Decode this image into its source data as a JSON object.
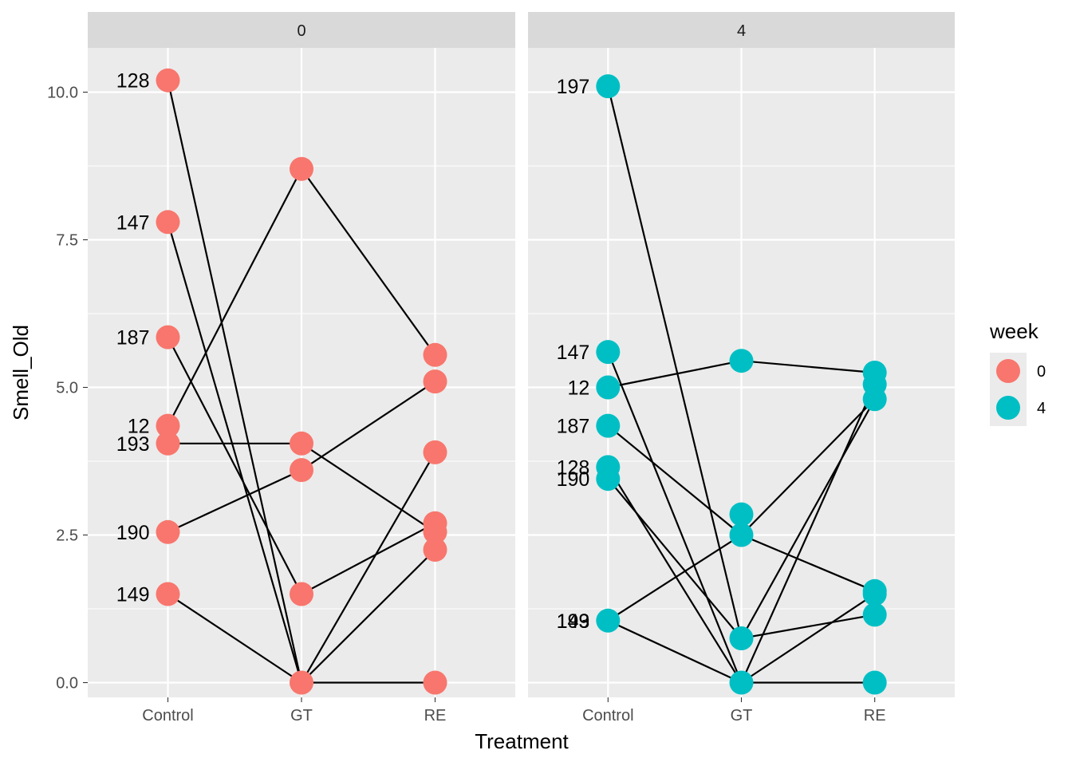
{
  "chart_data": {
    "type": "scatter",
    "title": "",
    "xlabel": "Treatment",
    "ylabel": "Smell_Old",
    "categories": [
      "Control",
      "GT",
      "RE"
    ],
    "ylim": [
      -0.25,
      10.75
    ],
    "yticks": [
      0,
      2.5,
      5,
      7.5,
      10
    ],
    "ytick_labels": [
      "0.0",
      "2.5",
      "5.0",
      "7.5",
      "10.0"
    ],
    "grid": true,
    "legend": {
      "title": "week",
      "position": "right",
      "entries": [
        {
          "label": "0",
          "color": "#F8766D"
        },
        {
          "label": "4",
          "color": "#00BFC4"
        }
      ]
    },
    "panels": [
      {
        "strip": "0",
        "color": "#F8766D",
        "points": [
          {
            "cat": "Control",
            "y": 10.2
          },
          {
            "cat": "Control",
            "y": 7.8
          },
          {
            "cat": "Control",
            "y": 5.85
          },
          {
            "cat": "Control",
            "y": 4.35
          },
          {
            "cat": "Control",
            "y": 4.05
          },
          {
            "cat": "Control",
            "y": 2.55
          },
          {
            "cat": "Control",
            "y": 1.5
          },
          {
            "cat": "GT",
            "y": 8.7
          },
          {
            "cat": "GT",
            "y": 4.05
          },
          {
            "cat": "GT",
            "y": 3.6
          },
          {
            "cat": "GT",
            "y": 1.5
          },
          {
            "cat": "GT",
            "y": 0.0
          },
          {
            "cat": "RE",
            "y": 5.55
          },
          {
            "cat": "RE",
            "y": 5.1
          },
          {
            "cat": "RE",
            "y": 3.9
          },
          {
            "cat": "RE",
            "y": 2.7
          },
          {
            "cat": "RE",
            "y": 2.55
          },
          {
            "cat": "RE",
            "y": 2.25
          },
          {
            "cat": "RE",
            "y": 0.0
          }
        ],
        "labels": [
          {
            "text": "128",
            "y": 10.2
          },
          {
            "text": "147",
            "y": 7.8
          },
          {
            "text": "187",
            "y": 5.85
          },
          {
            "text": "12",
            "y": 4.35
          },
          {
            "text": "193",
            "y": 4.05
          },
          {
            "text": "190",
            "y": 2.55
          },
          {
            "text": "149",
            "y": 1.5
          }
        ],
        "paths": [
          [
            [
              "Control",
              10.2
            ],
            [
              "GT",
              0.0
            ],
            [
              "RE",
              0.0
            ]
          ],
          [
            [
              "Control",
              7.8
            ],
            [
              "GT",
              0.0
            ],
            [
              "RE",
              2.25
            ]
          ],
          [
            [
              "Control",
              5.85
            ],
            [
              "GT",
              1.5
            ],
            [
              "RE",
              2.7
            ]
          ],
          [
            [
              "Control",
              4.35
            ],
            [
              "GT",
              8.7
            ],
            [
              "RE",
              5.55
            ]
          ],
          [
            [
              "Control",
              4.05
            ],
            [
              "GT",
              4.05
            ],
            [
              "RE",
              2.55
            ]
          ],
          [
            [
              "Control",
              2.55
            ],
            [
              "GT",
              3.6
            ],
            [
              "RE",
              5.1
            ]
          ],
          [
            [
              "Control",
              1.5
            ],
            [
              "GT",
              0.0
            ],
            [
              "RE",
              3.9
            ]
          ]
        ]
      },
      {
        "strip": "4",
        "color": "#00BFC4",
        "points": [
          {
            "cat": "Control",
            "y": 10.1
          },
          {
            "cat": "Control",
            "y": 5.6
          },
          {
            "cat": "Control",
            "y": 5.0
          },
          {
            "cat": "Control",
            "y": 4.35
          },
          {
            "cat": "Control",
            "y": 3.65
          },
          {
            "cat": "Control",
            "y": 3.45
          },
          {
            "cat": "Control",
            "y": 1.05
          },
          {
            "cat": "GT",
            "y": 5.45
          },
          {
            "cat": "GT",
            "y": 2.85
          },
          {
            "cat": "GT",
            "y": 2.5
          },
          {
            "cat": "GT",
            "y": 0.75
          },
          {
            "cat": "GT",
            "y": 0.0
          },
          {
            "cat": "RE",
            "y": 5.25
          },
          {
            "cat": "RE",
            "y": 5.05
          },
          {
            "cat": "RE",
            "y": 4.8
          },
          {
            "cat": "RE",
            "y": 1.55
          },
          {
            "cat": "RE",
            "y": 1.5
          },
          {
            "cat": "RE",
            "y": 1.15
          },
          {
            "cat": "RE",
            "y": 0.0
          }
        ],
        "labels": [
          {
            "text": "197",
            "y": 10.1
          },
          {
            "text": "147",
            "y": 5.6
          },
          {
            "text": "12",
            "y": 5.0
          },
          {
            "text": "187",
            "y": 4.35
          },
          {
            "text": "128",
            "y": 3.65
          },
          {
            "text": "190",
            "y": 3.45
          },
          {
            "text": "193",
            "y": 1.05
          },
          {
            "text": "149",
            "y": 1.05
          }
        ],
        "paths": [
          [
            [
              "Control",
              10.1
            ],
            [
              "GT",
              0.75
            ],
            [
              "RE",
              1.15
            ]
          ],
          [
            [
              "Control",
              5.6
            ],
            [
              "GT",
              0.0
            ],
            [
              "RE",
              5.05
            ]
          ],
          [
            [
              "Control",
              5.0
            ],
            [
              "GT",
              5.45
            ],
            [
              "RE",
              5.25
            ]
          ],
          [
            [
              "Control",
              4.35
            ],
            [
              "GT",
              2.5
            ],
            [
              "RE",
              1.55
            ]
          ],
          [
            [
              "Control",
              3.65
            ],
            [
              "GT",
              0.0
            ],
            [
              "RE",
              1.5
            ]
          ],
          [
            [
              "Control",
              3.45
            ],
            [
              "GT",
              0.75
            ],
            [
              "RE",
              4.8
            ]
          ],
          [
            [
              "Control",
              1.05
            ],
            [
              "GT",
              2.5
            ],
            [
              "RE",
              4.8
            ]
          ],
          [
            [
              "Control",
              1.05
            ],
            [
              "GT",
              0.0
            ],
            [
              "RE",
              0.0
            ]
          ]
        ]
      }
    ]
  }
}
